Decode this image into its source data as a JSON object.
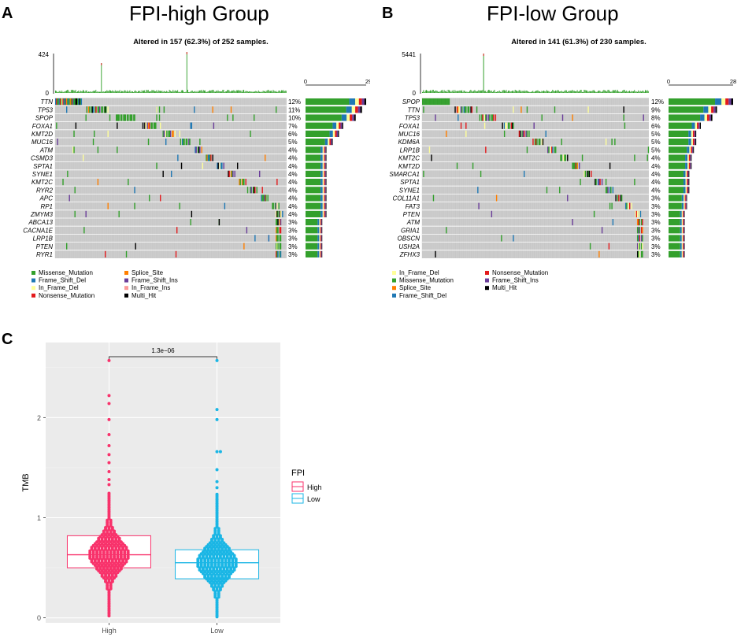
{
  "colors": {
    "Missense_Mutation": "#33a02c",
    "Frame_Shift_Del": "#1f78b4",
    "In_Frame_Del": "#ffff99",
    "Nonsense_Mutation": "#e31a1c",
    "Splice_Site": "#ff7f00",
    "Frame_Shift_Ins": "#6a3d9a",
    "In_Frame_Ins": "#fb9a99",
    "Multi_Hit": "#000000",
    "grid": "#cccccc",
    "tmb_high": "#f8326b",
    "tmb_low": "#1ab6e5",
    "tmb_panel_bg": "#ebebeb"
  },
  "panelA": {
    "letter": "A",
    "title": "FPI-high Group",
    "altered": "Altered in 157 (62.3%) of 252 samples.",
    "tmb_max": "424",
    "tmb_zero": "0",
    "side_axis": [
      "0",
      "29"
    ],
    "legend": [
      "Missense_Mutation",
      "Splice_Site",
      "Frame_Shift_Del",
      "Frame_Shift_Ins",
      "In_Frame_Del",
      "In_Frame_Ins",
      "Nonsense_Mutation",
      "Multi_Hit"
    ]
  },
  "panelB": {
    "letter": "B",
    "title": "FPI-low Group",
    "altered": "Altered in 141 (61.3%) of 230 samples.",
    "tmb_max": "5441",
    "tmb_zero": "0",
    "side_axis": [
      "0",
      "28"
    ],
    "legend": [
      "In_Frame_Del",
      "Nonsense_Mutation",
      "Missense_Mutation",
      "Frame_Shift_Ins",
      "Splice_Site",
      "Multi_Hit",
      "Frame_Shift_Del"
    ]
  },
  "panelC": {
    "letter": "C"
  },
  "chart_data": [
    {
      "type": "oncoplot",
      "title": "FPI-high Group",
      "samples": 252,
      "altered_samples": 157,
      "tmb_axis": [
        0,
        424
      ],
      "genes": [
        {
          "gene": "TTN",
          "pct": "12%",
          "count": 29
        },
        {
          "gene": "TP53",
          "pct": "11%",
          "count": 27
        },
        {
          "gene": "SPOP",
          "pct": "10%",
          "count": 24
        },
        {
          "gene": "FOXA1",
          "pct": "7%",
          "count": 18
        },
        {
          "gene": "KMT2D",
          "pct": "6%",
          "count": 16
        },
        {
          "gene": "MUC16",
          "pct": "5%",
          "count": 13
        },
        {
          "gene": "ATM",
          "pct": "4%",
          "count": 10
        },
        {
          "gene": "CSMD3",
          "pct": "4%",
          "count": 10
        },
        {
          "gene": "SPTA1",
          "pct": "4%",
          "count": 10
        },
        {
          "gene": "SYNE1",
          "pct": "4%",
          "count": 10
        },
        {
          "gene": "KMT2C",
          "pct": "4%",
          "count": 10
        },
        {
          "gene": "RYR2",
          "pct": "4%",
          "count": 10
        },
        {
          "gene": "APC",
          "pct": "4%",
          "count": 10
        },
        {
          "gene": "RP1",
          "pct": "4%",
          "count": 10
        },
        {
          "gene": "ZMYM3",
          "pct": "4%",
          "count": 10
        },
        {
          "gene": "ABCA13",
          "pct": "3%",
          "count": 8
        },
        {
          "gene": "CACNA1E",
          "pct": "3%",
          "count": 8
        },
        {
          "gene": "LRP1B",
          "pct": "3%",
          "count": 8
        },
        {
          "gene": "PTEN",
          "pct": "3%",
          "count": 8
        },
        {
          "gene": "RYR1",
          "pct": "3%",
          "count": 8
        }
      ]
    },
    {
      "type": "oncoplot",
      "title": "FPI-low Group",
      "samples": 230,
      "altered_samples": 141,
      "tmb_axis": [
        0,
        5441
      ],
      "genes": [
        {
          "gene": "SPOP",
          "pct": "12%",
          "count": 28
        },
        {
          "gene": "TTN",
          "pct": "9%",
          "count": 21
        },
        {
          "gene": "TP53",
          "pct": "8%",
          "count": 19
        },
        {
          "gene": "FOXA1",
          "pct": "6%",
          "count": 14
        },
        {
          "gene": "MUC16",
          "pct": "5%",
          "count": 12
        },
        {
          "gene": "KDM6A",
          "pct": "5%",
          "count": 12
        },
        {
          "gene": "LRP1B",
          "pct": "5%",
          "count": 11
        },
        {
          "gene": "KMT2C",
          "pct": "4%",
          "count": 10
        },
        {
          "gene": "KMT2D",
          "pct": "4%",
          "count": 10
        },
        {
          "gene": "SMARCA1",
          "pct": "4%",
          "count": 9
        },
        {
          "gene": "SPTA1",
          "pct": "4%",
          "count": 9
        },
        {
          "gene": "SYNE1",
          "pct": "4%",
          "count": 9
        },
        {
          "gene": "COL11A1",
          "pct": "3%",
          "count": 8
        },
        {
          "gene": "FAT3",
          "pct": "3%",
          "count": 8
        },
        {
          "gene": "PTEN",
          "pct": "3%",
          "count": 7
        },
        {
          "gene": "ATM",
          "pct": "3%",
          "count": 7
        },
        {
          "gene": "GRIA1",
          "pct": "3%",
          "count": 7
        },
        {
          "gene": "OBSCN",
          "pct": "3%",
          "count": 7
        },
        {
          "gene": "USH2A",
          "pct": "3%",
          "count": 7
        },
        {
          "gene": "ZFHX3",
          "pct": "3%",
          "count": 7
        }
      ]
    },
    {
      "type": "boxplot",
      "xlabel": "",
      "ylabel": "TMB",
      "categories": [
        "High",
        "Low"
      ],
      "ylim": [
        -0.05,
        2.75
      ],
      "yticks": [
        0,
        1,
        2
      ],
      "pvalue": "1.3e−06",
      "legend_title": "FPI",
      "legend": [
        "High",
        "Low"
      ],
      "boxes": [
        {
          "name": "High",
          "q1": 0.5,
          "median": 0.63,
          "q3": 0.82,
          "max_point": 2.57
        },
        {
          "name": "Low",
          "q1": 0.39,
          "median": 0.55,
          "q3": 0.68,
          "max_point": 2.57
        }
      ]
    }
  ]
}
